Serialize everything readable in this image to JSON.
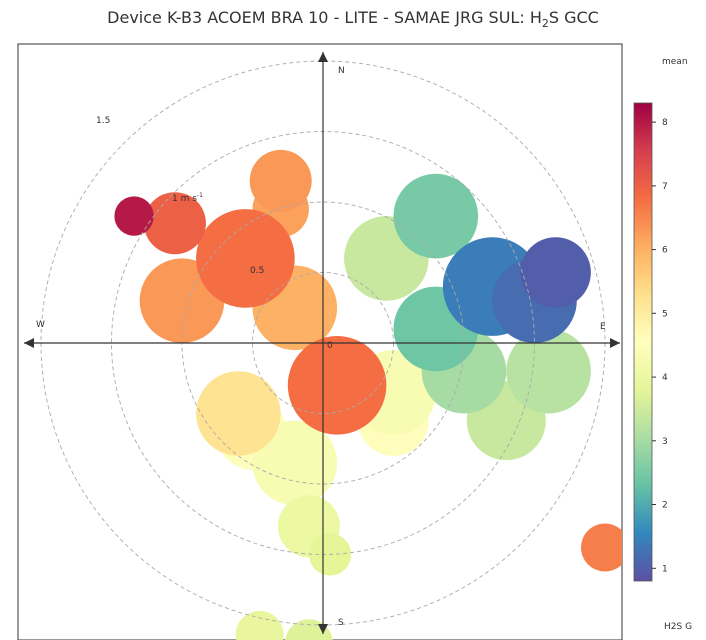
{
  "chart_data": {
    "type": "heatmap",
    "subtype": "polar-plot",
    "title_prefix": "Device K-B3 ACOEM BRA 10 - LITE - SAMAE JRG SUL: H",
    "title_sub": "2",
    "title_suffix": "S GCC",
    "compass": {
      "north": "N",
      "east": "E",
      "south": "S",
      "west": "W"
    },
    "center_label": "0",
    "radial_unit_label": "1 m s",
    "radial_unit_exp": "-1",
    "radial_ticks": [
      {
        "value": 0.5,
        "label": "0.5"
      },
      {
        "value": 1.0,
        "label": ""
      },
      {
        "value": 1.5,
        "label": "1.5"
      },
      {
        "value": 2.0,
        "label": ""
      }
    ],
    "colorbar": {
      "title": "mean",
      "range": [
        0.8,
        8.3
      ],
      "ticks": [
        1,
        2,
        3,
        4,
        5,
        6,
        7,
        8
      ],
      "ticklabels": [
        "1",
        "2",
        "3",
        "4",
        "5",
        "6",
        "7",
        "8"
      ],
      "label": "H2S G",
      "colormap": [
        "#5e4fa2",
        "#3288bd",
        "#66c2a5",
        "#abdda4",
        "#e6f598",
        "#ffffbf",
        "#fee08b",
        "#fdae61",
        "#f46d43",
        "#d53e4f",
        "#9e0142"
      ]
    },
    "blobs": [
      {
        "u": -1.34,
        "v": 0.9,
        "r": 0.14,
        "value": 8.0
      },
      {
        "u": -1.05,
        "v": 0.85,
        "r": 0.22,
        "value": 7.0
      },
      {
        "u": -0.55,
        "v": 0.6,
        "r": 0.35,
        "value": 6.8
      },
      {
        "u": -0.3,
        "v": 1.15,
        "r": 0.22,
        "value": 6.3
      },
      {
        "u": -0.3,
        "v": 0.95,
        "r": 0.2,
        "value": 6.2
      },
      {
        "u": -1.0,
        "v": 0.3,
        "r": 0.3,
        "value": 6.3
      },
      {
        "u": -0.2,
        "v": 0.25,
        "r": 0.3,
        "value": 6.0
      },
      {
        "u": 0.1,
        "v": -0.3,
        "r": 0.35,
        "value": 6.8
      },
      {
        "u": -0.6,
        "v": -0.5,
        "r": 0.3,
        "value": 5.2
      },
      {
        "u": -0.5,
        "v": -0.65,
        "r": 0.25,
        "value": 4.5
      },
      {
        "u": -0.2,
        "v": -0.85,
        "r": 0.3,
        "value": 4.3
      },
      {
        "u": -0.1,
        "v": -1.3,
        "r": 0.22,
        "value": 4.0
      },
      {
        "u": 0.05,
        "v": -1.5,
        "r": 0.15,
        "value": 3.8
      },
      {
        "u": 0.45,
        "v": 0.6,
        "r": 0.3,
        "value": 3.4
      },
      {
        "u": 0.8,
        "v": 0.9,
        "r": 0.3,
        "value": 2.5
      },
      {
        "u": 1.2,
        "v": 0.4,
        "r": 0.35,
        "value": 1.4
      },
      {
        "u": 1.5,
        "v": 0.3,
        "r": 0.3,
        "value": 1.2
      },
      {
        "u": 1.65,
        "v": 0.5,
        "r": 0.25,
        "value": 1.0
      },
      {
        "u": 0.8,
        "v": 0.1,
        "r": 0.3,
        "value": 2.4
      },
      {
        "u": 1.0,
        "v": -0.2,
        "r": 0.3,
        "value": 3.0
      },
      {
        "u": 1.6,
        "v": -0.2,
        "r": 0.3,
        "value": 3.2
      },
      {
        "u": 0.5,
        "v": -0.35,
        "r": 0.3,
        "value": 4.3
      },
      {
        "u": 1.3,
        "v": -0.55,
        "r": 0.28,
        "value": 3.4
      },
      {
        "u": 0.5,
        "v": -0.55,
        "r": 0.25,
        "value": 4.6
      },
      {
        "u": 2.0,
        "v": -1.45,
        "r": 0.17,
        "value": 6.6
      },
      {
        "u": -0.45,
        "v": -2.07,
        "r": 0.17,
        "value": 3.9
      },
      {
        "u": -0.1,
        "v": -2.13,
        "r": 0.17,
        "value": 3.7
      }
    ]
  }
}
